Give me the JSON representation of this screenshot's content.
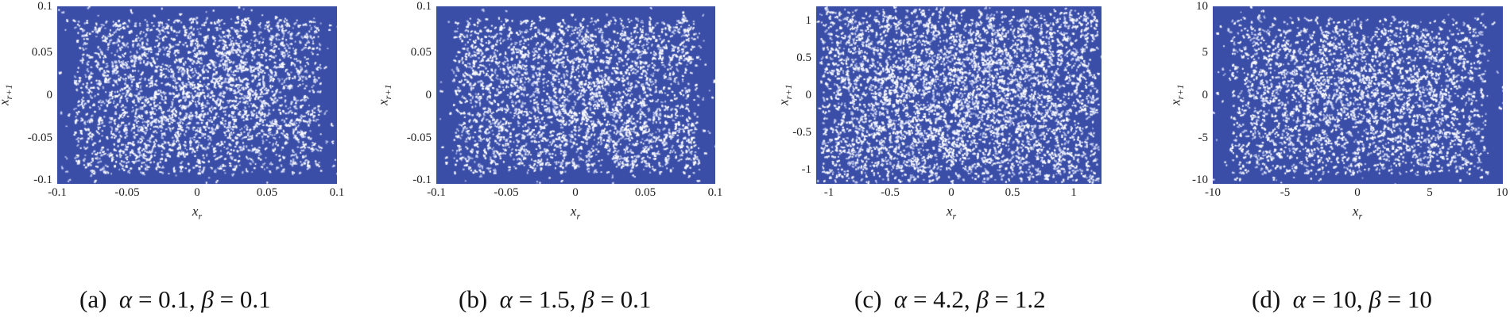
{
  "figure": {
    "plot_color": "#3a4ea8",
    "background": "#ffffff"
  },
  "chart_data": [
    {
      "type": "scatter",
      "panel": "a",
      "title": "(a) α = 0.1, β = 0.1",
      "caption_label": "(a)",
      "caption_expr": "α = 0.1, β = 0.1",
      "params": {
        "alpha": 0.1,
        "beta": 0.1
      },
      "xlabel": "x_r",
      "ylabel": "x_{r+1}",
      "xlim": [
        -0.1,
        0.1
      ],
      "ylim": [
        -0.1,
        0.1
      ],
      "xticks": [
        "-0.1",
        "-0.05",
        "0",
        "0.05",
        "0.1"
      ],
      "yticks": [
        "0.1",
        "0.05",
        "0",
        "-0.05",
        "-0.1"
      ],
      "description": "Dense uniform-like scatter of consecutive iterates filling the square [-0.1,0.1]^2; denser at edges, sparser white gaps at center",
      "grid": false
    },
    {
      "type": "scatter",
      "panel": "b",
      "title": "(b) α = 1.5, β = 0.1",
      "caption_label": "(b)",
      "caption_expr": "α = 1.5, β = 0.1",
      "params": {
        "alpha": 1.5,
        "beta": 0.1
      },
      "xlabel": "x_r",
      "ylabel": "x_{r+1}",
      "xlim": [
        -0.1,
        0.1
      ],
      "ylim": [
        -0.1,
        0.1
      ],
      "xticks": [
        "-0.1",
        "-0.05",
        "0",
        "0.05",
        "0.1"
      ],
      "yticks": [
        "0.1",
        "0.05",
        "0",
        "-0.05",
        "-0.1"
      ],
      "description": "Dense scatter filling the square [-0.1,0.1]^2",
      "grid": false
    },
    {
      "type": "scatter",
      "panel": "c",
      "title": "(c) α = 4.2, β = 1.2",
      "caption_label": "(c)",
      "caption_expr": "α = 4.2, β = 1.2",
      "params": {
        "alpha": 4.2,
        "beta": 1.2
      },
      "xlabel": "x_r",
      "ylabel": "x_{r+1}",
      "xlim": [
        -1.12,
        1.12
      ],
      "ylim": [
        -1.12,
        1.12
      ],
      "xticks": [
        "-1",
        "-0.5",
        "0",
        "0.5",
        "1"
      ],
      "yticks": [
        "1",
        "0.5",
        "0",
        "-0.5",
        "-1"
      ],
      "description": "Dense scatter filling the square approximately [-1.1,1.1]^2",
      "grid": false
    },
    {
      "type": "scatter",
      "panel": "d",
      "title": "(d) α = 10, β = 10",
      "caption_label": "(d)",
      "caption_expr": "α = 10, β = 10",
      "params": {
        "alpha": 10,
        "beta": 10
      },
      "xlabel": "x_r",
      "ylabel": "x_{r+1}",
      "xlim": [
        -10,
        10
      ],
      "ylim": [
        -10,
        10
      ],
      "xticks": [
        "-10",
        "-5",
        "0",
        "5",
        "10"
      ],
      "yticks": [
        "10",
        "5",
        "0",
        "-5",
        "-10"
      ],
      "description": "Dense scatter filling the square [-10,10]^2",
      "grid": false
    }
  ],
  "panels": [
    {
      "caption_label": "(a)",
      "alpha": "0.1",
      "beta": "0.1",
      "xticks": [
        "-0.1",
        "-0.05",
        "0",
        "0.05",
        "0.1"
      ],
      "yticks": [
        "0.1",
        "0.05",
        "0",
        "-0.05",
        "-0.1"
      ],
      "xlabel": "x",
      "xlabel_sub": "r",
      "ylabel": "x",
      "ylabel_sub": "r+1"
    },
    {
      "caption_label": "(b)",
      "alpha": "1.5",
      "beta": "0.1",
      "xticks": [
        "-0.1",
        "-0.05",
        "0",
        "0.05",
        "0.1"
      ],
      "yticks": [
        "0.1",
        "0.05",
        "0",
        "-0.05",
        "-0.1"
      ],
      "xlabel": "x",
      "xlabel_sub": "r",
      "ylabel": "x",
      "ylabel_sub": "r+1"
    },
    {
      "caption_label": "(c)",
      "alpha": "4.2",
      "beta": "1.2",
      "xticks": [
        "-1",
        "-0.5",
        "0",
        "0.5",
        "1"
      ],
      "yticks": [
        "1",
        "0.5",
        "0",
        "-0.5",
        "-1"
      ],
      "xlabel": "x",
      "xlabel_sub": "r",
      "ylabel": "x",
      "ylabel_sub": "r+1"
    },
    {
      "caption_label": "(d)",
      "alpha": "10",
      "beta": "10",
      "xticks": [
        "-10",
        "-5",
        "0",
        "5",
        "10"
      ],
      "yticks": [
        "10",
        "5",
        "0",
        "-5",
        "-10"
      ],
      "xlabel": "x",
      "xlabel_sub": "r",
      "ylabel": "x",
      "ylabel_sub": "r+1"
    }
  ],
  "symbols": {
    "alpha": "α",
    "beta": "β",
    "equals": " = ",
    "comma": ", "
  }
}
